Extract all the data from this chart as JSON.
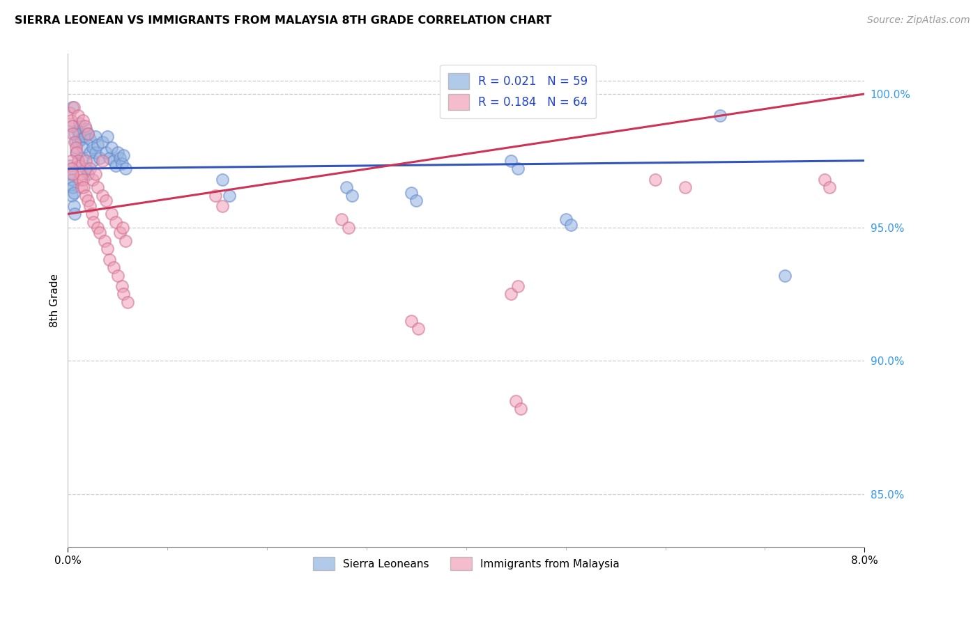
{
  "title": "SIERRA LEONEAN VS IMMIGRANTS FROM MALAYSIA 8TH GRADE CORRELATION CHART",
  "source": "Source: ZipAtlas.com",
  "ylabel": "8th Grade",
  "xlim": [
    0.0,
    8.0
  ],
  "ylim": [
    83.0,
    101.5
  ],
  "yticks_right": [
    85.0,
    90.0,
    95.0,
    100.0
  ],
  "blue_r": "0.021",
  "blue_n": "59",
  "pink_r": "0.184",
  "pink_n": "64",
  "legend_label_blue": "Sierra Leoneans",
  "legend_label_pink": "Immigrants from Malaysia",
  "blue_face": "#92b4e0",
  "blue_edge": "#6688cc",
  "pink_face": "#f0a0b8",
  "pink_edge": "#d07090",
  "blue_line": "#3355bb",
  "pink_line": "#cc3355",
  "blue_trend_x": [
    0.0,
    8.0
  ],
  "blue_trend_y": [
    97.2,
    97.5
  ],
  "pink_trend_x": [
    0.0,
    8.0
  ],
  "pink_trend_y": [
    95.5,
    100.0
  ],
  "blue_dots_x": [
    0.05,
    0.05,
    0.07,
    0.08,
    0.08,
    0.1,
    0.1,
    0.1,
    0.12,
    0.12,
    0.13,
    0.15,
    0.15,
    0.17,
    0.18,
    0.18,
    0.2,
    0.2,
    0.22,
    0.22,
    0.25,
    0.25,
    0.28,
    0.28,
    0.3,
    0.32,
    0.35,
    0.38,
    0.4,
    0.42,
    0.44,
    0.46,
    0.48,
    0.5,
    0.52,
    0.54,
    0.56,
    0.58,
    0.02,
    0.03,
    0.03,
    0.04,
    0.04,
    0.05,
    0.06,
    0.06,
    0.07,
    1.55,
    1.62,
    2.8,
    2.85,
    3.45,
    3.5,
    4.45,
    4.52,
    5.0,
    5.05,
    6.55,
    7.2
  ],
  "blue_dots_y": [
    99.5,
    98.8,
    98.5,
    98.2,
    97.8,
    98.6,
    98.2,
    97.5,
    98.9,
    98.5,
    98.3,
    98.0,
    97.6,
    98.4,
    98.7,
    97.2,
    98.5,
    97.0,
    98.3,
    97.8,
    98.0,
    97.5,
    98.4,
    97.8,
    98.1,
    97.6,
    98.2,
    97.8,
    98.4,
    97.6,
    98.0,
    97.5,
    97.3,
    97.8,
    97.6,
    97.4,
    97.7,
    97.2,
    97.3,
    97.0,
    96.6,
    96.8,
    96.2,
    96.5,
    96.3,
    95.8,
    95.5,
    96.8,
    96.2,
    96.5,
    96.2,
    96.3,
    96.0,
    97.5,
    97.2,
    95.3,
    95.1,
    99.2,
    93.2
  ],
  "pink_dots_x": [
    0.02,
    0.03,
    0.04,
    0.05,
    0.06,
    0.07,
    0.08,
    0.09,
    0.1,
    0.1,
    0.12,
    0.12,
    0.13,
    0.14,
    0.15,
    0.15,
    0.16,
    0.17,
    0.18,
    0.18,
    0.2,
    0.2,
    0.22,
    0.22,
    0.24,
    0.25,
    0.26,
    0.28,
    0.3,
    0.3,
    0.32,
    0.35,
    0.35,
    0.37,
    0.38,
    0.4,
    0.42,
    0.44,
    0.46,
    0.48,
    0.5,
    0.52,
    0.54,
    0.55,
    0.56,
    0.58,
    0.6,
    0.03,
    0.04,
    0.05,
    1.48,
    1.55,
    2.75,
    2.82,
    3.45,
    3.52,
    4.45,
    4.52,
    4.5,
    4.55,
    5.9,
    6.2,
    7.6,
    7.65
  ],
  "pink_dots_y": [
    99.3,
    99.0,
    98.8,
    98.5,
    99.5,
    98.2,
    98.0,
    97.8,
    97.5,
    99.2,
    97.3,
    96.8,
    97.0,
    96.5,
    96.8,
    99.0,
    96.5,
    98.8,
    96.2,
    97.5,
    96.0,
    98.5,
    95.8,
    97.2,
    95.5,
    96.8,
    95.2,
    97.0,
    95.0,
    96.5,
    94.8,
    96.2,
    97.5,
    94.5,
    96.0,
    94.2,
    93.8,
    95.5,
    93.5,
    95.2,
    93.2,
    94.8,
    92.8,
    95.0,
    92.5,
    94.5,
    92.2,
    97.5,
    97.2,
    97.0,
    96.2,
    95.8,
    95.3,
    95.0,
    91.5,
    91.2,
    92.5,
    92.8,
    88.5,
    88.2,
    96.8,
    96.5,
    96.8,
    96.5
  ]
}
